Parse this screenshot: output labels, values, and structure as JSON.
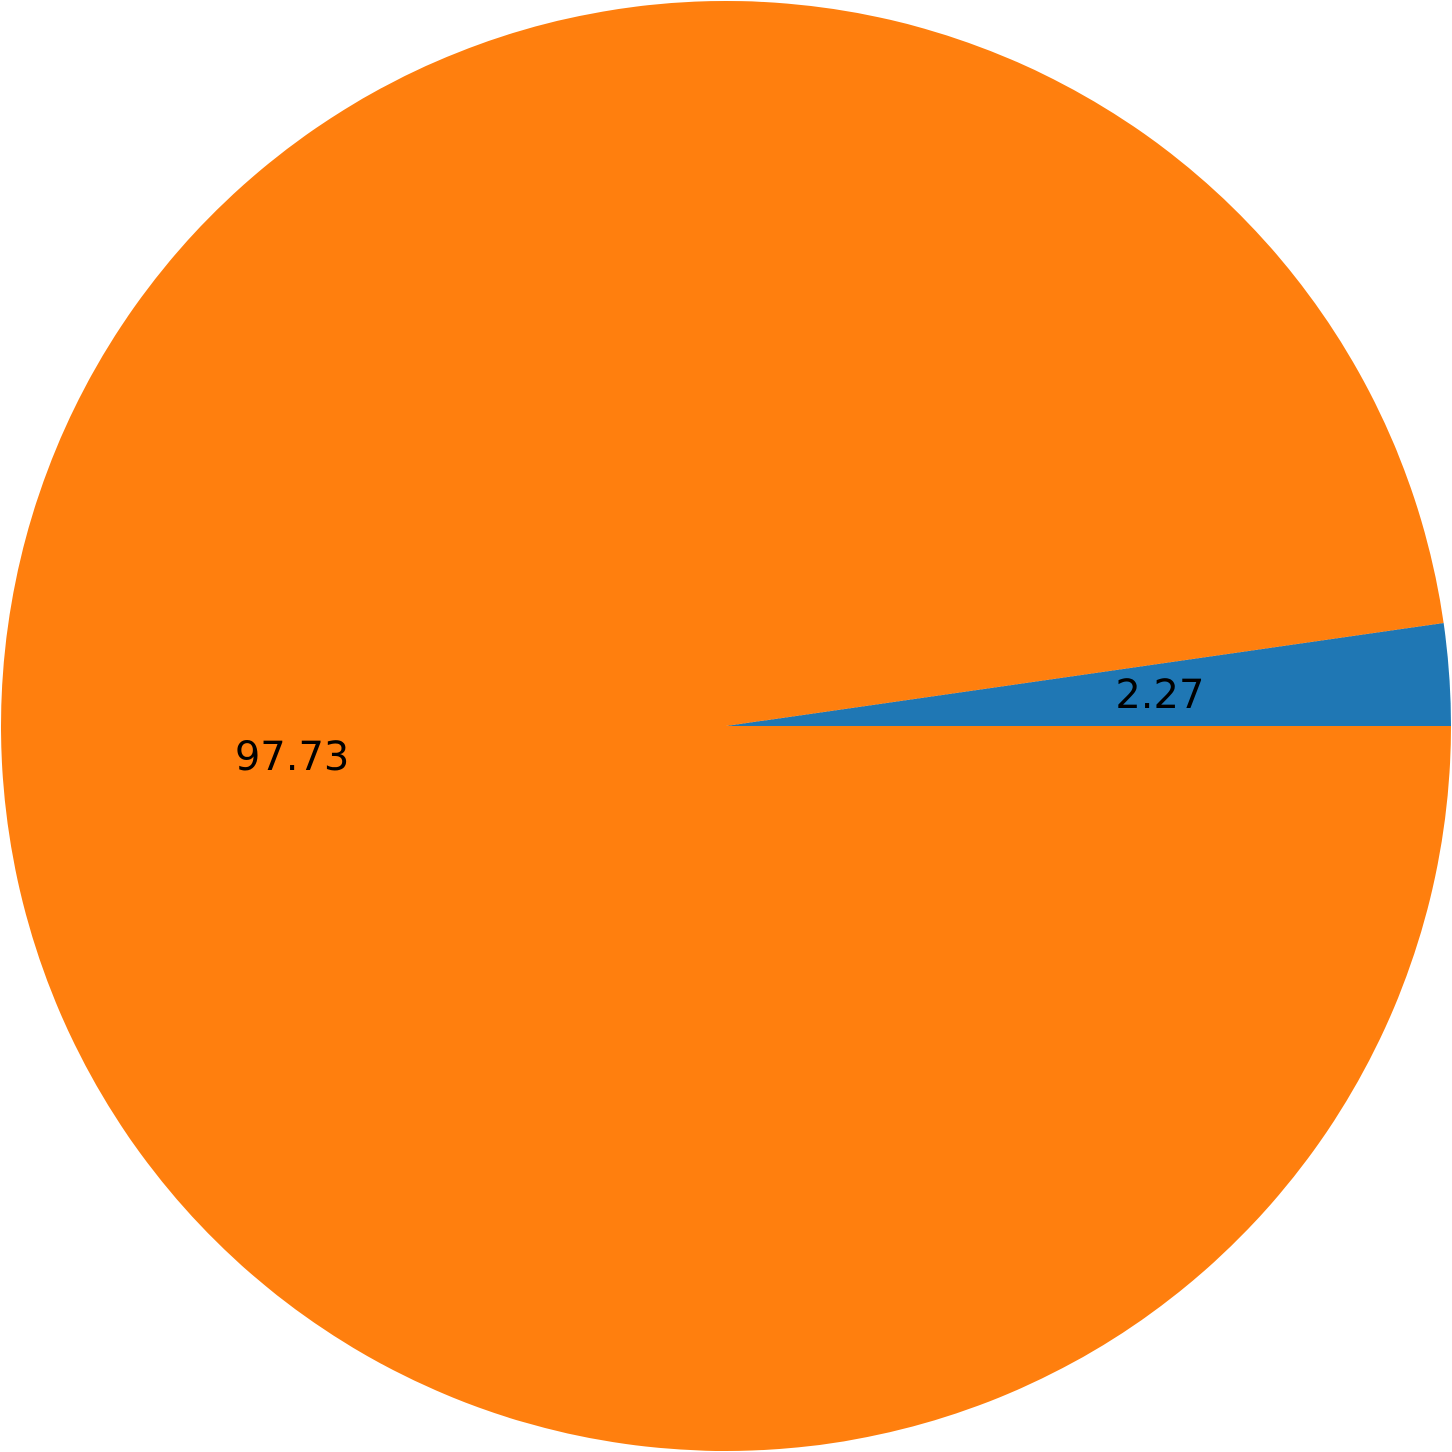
{
  "chart_data": {
    "type": "pie",
    "title": "",
    "slices": [
      {
        "label": "2.27",
        "value": 2.27,
        "color": "#1f77b4"
      },
      {
        "label": "97.73",
        "value": 97.73,
        "color": "#ff7f0e"
      }
    ],
    "start_angle_deg": 0,
    "direction": "counterclockwise",
    "legend": "none"
  }
}
